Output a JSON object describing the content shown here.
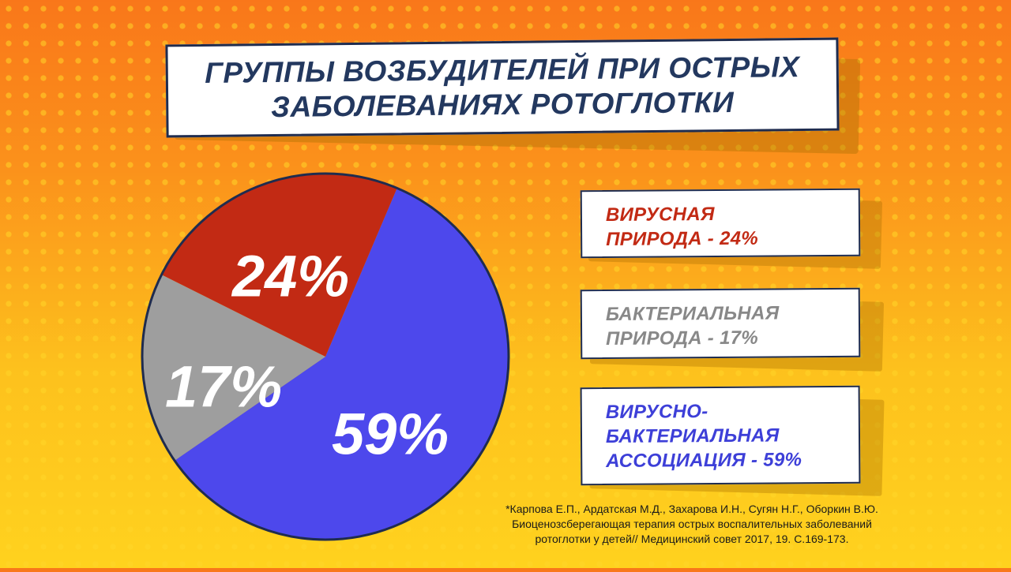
{
  "title": {
    "line1": "ГРУППЫ ВОЗБУДИТЕЛЕЙ ПРИ ОСТРЫХ",
    "line2": "ЗАБОЛЕВАНИЯХ РОТОГЛОТКИ"
  },
  "chart_data": {
    "type": "pie",
    "slices": [
      {
        "value": 59,
        "label": "59%",
        "color": "#4d48ec"
      },
      {
        "value": 17,
        "label": "17%",
        "color": "#9e9e9e"
      },
      {
        "value": 24,
        "label": "24%",
        "color": "#c22a14"
      }
    ]
  },
  "legend": [
    {
      "text": "ВИРУСНАЯ\nПРИРОДА - 24%",
      "color": "#c22a14"
    },
    {
      "text": "БАКТЕРИАЛЬНАЯ\nПРИРОДА - 17%",
      "color": "#888888"
    },
    {
      "text": "ВИРУСНО-\nБАКТЕРИАЛЬНАЯ\nАССОЦИАЦИЯ - 59%",
      "color": "#3d3fd8"
    }
  ],
  "footnote": {
    "line1": "*Карпова Е.П., Ардатская М.Д., Захарова И.Н., Сугян Н.Г., Оборкин В.Ю.",
    "line2": "Биоценозсберегающая терапия острых воспалительных заболеваний",
    "line3": "ротоглотки у детей// Медицинский совет 2017, 19. С.169-173."
  }
}
